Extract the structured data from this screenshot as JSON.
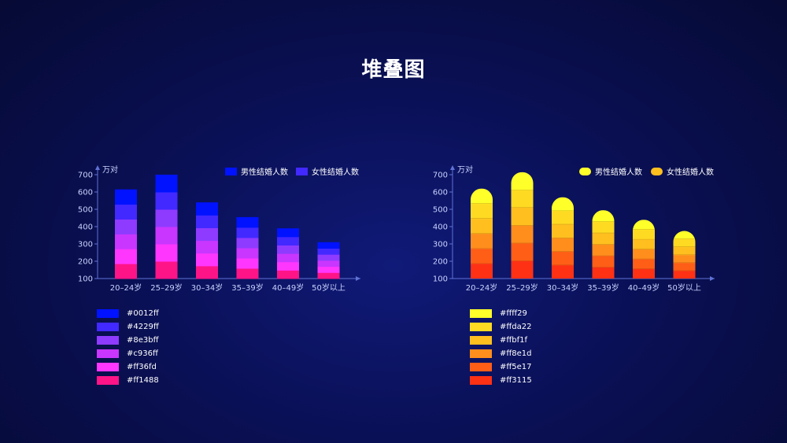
{
  "title": "堆叠图",
  "chart_data": [
    {
      "type": "bar",
      "style": "stacked",
      "ylabel": "万对",
      "categories": [
        "20–24岁",
        "25–29岁",
        "30–34岁",
        "35–39岁",
        "40–49岁",
        "50岁以上"
      ],
      "yticks": [
        100,
        200,
        300,
        400,
        500,
        600,
        700
      ],
      "ylim": [
        100,
        700
      ],
      "legend": [
        {
          "name": "男性结婚人数",
          "color": "#0012ff"
        },
        {
          "name": "女性结婚人数",
          "color": "#4229ff"
        }
      ],
      "legend_position": "top-right",
      "totals": [
        615,
        700,
        540,
        455,
        390,
        310
      ],
      "colors": [
        "#ff1488",
        "#ff36fd",
        "#c936ff",
        "#8e3bff",
        "#4229ff",
        "#0012ff"
      ],
      "swatches": [
        {
          "color": "#0012ff",
          "label": "#0012ff"
        },
        {
          "color": "#4229ff",
          "label": "#4229ff"
        },
        {
          "color": "#8e3bff",
          "label": "#8e3bff"
        },
        {
          "color": "#c936ff",
          "label": "#c936ff"
        },
        {
          "color": "#ff36fd",
          "label": "#ff36fd"
        },
        {
          "color": "#ff1488",
          "label": "#ff1488"
        }
      ]
    },
    {
      "type": "bar",
      "style": "stacked-rounded",
      "ylabel": "万对",
      "categories": [
        "20–24岁",
        "25–29岁",
        "30–34岁",
        "35–39岁",
        "40–49岁",
        "50岁以上"
      ],
      "yticks": [
        100,
        200,
        300,
        400,
        500,
        600,
        700
      ],
      "ylim": [
        100,
        700
      ],
      "legend": [
        {
          "name": "男性结婚人数",
          "color": "#ffff29"
        },
        {
          "name": "女性结婚人数",
          "color": "#ffbf1f"
        }
      ],
      "legend_position": "top-right",
      "totals": [
        620,
        715,
        570,
        495,
        440,
        375
      ],
      "colors": [
        "#ff3115",
        "#ff5e17",
        "#ff8e1d",
        "#ffbf1f",
        "#ffda22",
        "#ffff29"
      ],
      "swatches": [
        {
          "color": "#ffff29",
          "label": "#ffff29"
        },
        {
          "color": "#ffda22",
          "label": "#ffda22"
        },
        {
          "color": "#ffbf1f",
          "label": "#ffbf1f"
        },
        {
          "color": "#ff8e1d",
          "label": "#ff8e1d"
        },
        {
          "color": "#ff5e17",
          "label": "#ff5e17"
        },
        {
          "color": "#ff3115",
          "label": "#ff3115"
        }
      ]
    }
  ]
}
